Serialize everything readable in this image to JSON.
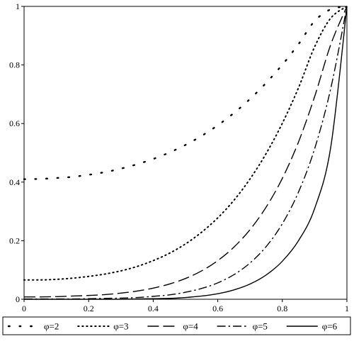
{
  "chart_data": {
    "type": "line",
    "title": "",
    "xlabel": "",
    "ylabel": "",
    "xlim": [
      0,
      1
    ],
    "ylim": [
      0,
      1
    ],
    "x_ticks": [
      "0",
      "0.2",
      "0.4",
      "0.6",
      "0.8",
      "1"
    ],
    "y_ticks": [
      "0",
      "0.2",
      "0.4",
      "0.6",
      "0.8",
      "1"
    ],
    "grid": false,
    "legend_position": "bottom",
    "x": [
      0,
      0.05,
      0.1,
      0.15,
      0.2,
      0.25,
      0.3,
      0.35,
      0.4,
      0.45,
      0.5,
      0.55,
      0.6,
      0.65,
      0.7,
      0.75,
      0.8,
      0.85,
      0.9,
      0.95,
      1
    ],
    "series": [
      {
        "name": "φ=2",
        "style": "sparse-dots",
        "values": [
          0.41,
          0.411,
          0.414,
          0.418,
          0.425,
          0.434,
          0.446,
          0.461,
          0.479,
          0.501,
          0.527,
          0.558,
          0.594,
          0.636,
          0.684,
          0.739,
          0.801,
          0.871,
          0.95,
          0.99,
          1.0
        ]
      },
      {
        "name": "φ=3",
        "style": "dense-dots",
        "values": [
          0.066,
          0.066,
          0.068,
          0.072,
          0.078,
          0.086,
          0.097,
          0.112,
          0.132,
          0.157,
          0.189,
          0.229,
          0.278,
          0.338,
          0.411,
          0.498,
          0.601,
          0.722,
          0.862,
          0.96,
          1.0
        ]
      },
      {
        "name": "φ=4",
        "style": "long-dash",
        "values": [
          0.008,
          0.008,
          0.009,
          0.011,
          0.013,
          0.016,
          0.021,
          0.028,
          0.038,
          0.052,
          0.071,
          0.097,
          0.132,
          0.178,
          0.238,
          0.315,
          0.413,
          0.537,
          0.692,
          0.87,
          1.0
        ]
      },
      {
        "name": "φ=5",
        "style": "dash-dot",
        "values": [
          0.001,
          0.001,
          0.001,
          0.001,
          0.002,
          0.003,
          0.004,
          0.006,
          0.01,
          0.015,
          0.024,
          0.037,
          0.056,
          0.084,
          0.124,
          0.18,
          0.258,
          0.366,
          0.514,
          0.72,
          1.0
        ]
      },
      {
        "name": "φ=6",
        "style": "solid",
        "values": [
          0,
          0,
          0,
          0,
          0,
          0,
          0,
          0.001,
          0.002,
          0.003,
          0.006,
          0.011,
          0.019,
          0.032,
          0.052,
          0.083,
          0.13,
          0.2,
          0.31,
          0.52,
          1.0
        ]
      }
    ]
  }
}
